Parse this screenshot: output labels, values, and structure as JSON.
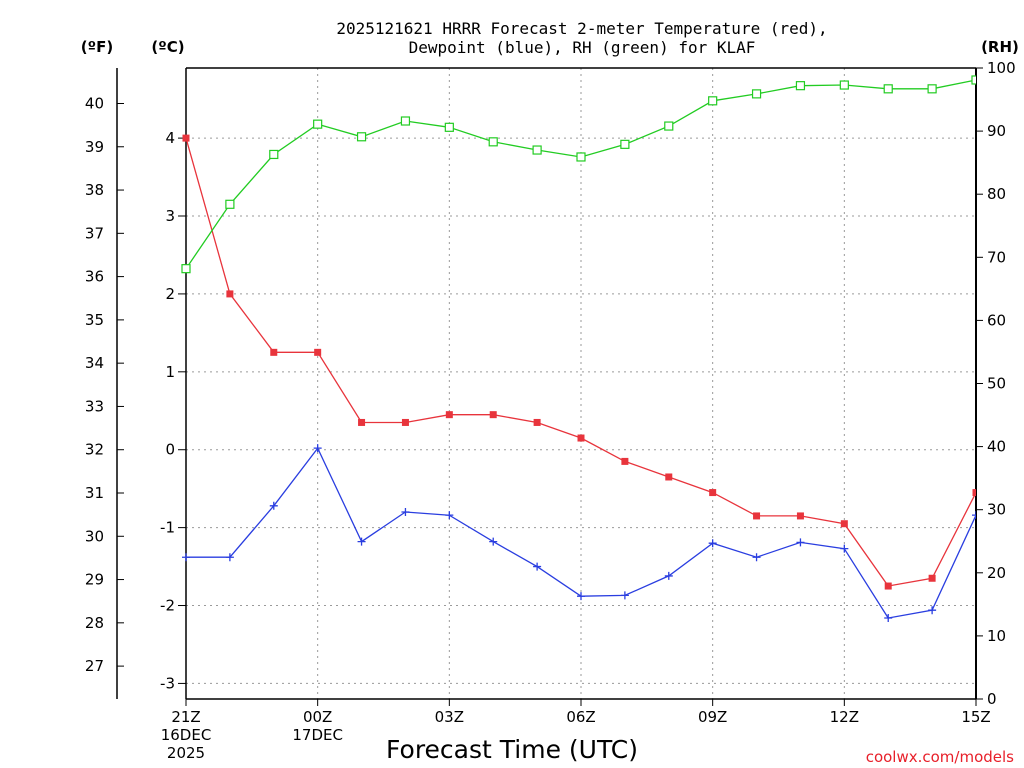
{
  "chart_data": {
    "type": "line",
    "title_line1": "2025121621 HRRR Forecast 2-meter Temperature (red),",
    "title_line2": "Dewpoint (blue), RH (green) for KLAF",
    "xlabel": "Forecast Time (UTC)",
    "credit": "coolwx.com/models",
    "left_outer_unit": "(ºF)",
    "left_inner_unit": "(ºC)",
    "right_unit": "(RH)",
    "x_ticks": [
      {
        "hour": 0,
        "label": "21Z",
        "sub1": "16DEC",
        "sub2": "2025"
      },
      {
        "hour": 3,
        "label": "00Z",
        "sub1": "17DEC",
        "sub2": ""
      },
      {
        "hour": 6,
        "label": "03Z",
        "sub1": "",
        "sub2": ""
      },
      {
        "hour": 9,
        "label": "06Z",
        "sub1": "",
        "sub2": ""
      },
      {
        "hour": 12,
        "label": "09Z",
        "sub1": "",
        "sub2": ""
      },
      {
        "hour": 15,
        "label": "12Z",
        "sub1": "",
        "sub2": ""
      },
      {
        "hour": 18,
        "label": "15Z",
        "sub1": "",
        "sub2": ""
      }
    ],
    "x_range": [
      0,
      18
    ],
    "celsius_range": [
      -3.2,
      4.9
    ],
    "celsius_ticks": [
      -3,
      -2,
      -1,
      0,
      1,
      2,
      3,
      4
    ],
    "fahrenheit_ticks": [
      27,
      28,
      29,
      30,
      31,
      32,
      33,
      34,
      35,
      36,
      37,
      38,
      39,
      40
    ],
    "rh_range": [
      0,
      100
    ],
    "rh_ticks": [
      0,
      10,
      20,
      30,
      40,
      50,
      60,
      70,
      80,
      90,
      100
    ],
    "series": [
      {
        "name": "Temperature",
        "axis": "celsius",
        "color": "#e8343c",
        "marker": "filled-square",
        "values": [
          4.0,
          2.0,
          1.25,
          1.25,
          0.35,
          0.35,
          0.45,
          0.45,
          0.35,
          0.15,
          -0.15,
          -0.35,
          -0.55,
          -0.85,
          -0.85,
          -0.95,
          -1.75,
          -1.65,
          -0.55
        ]
      },
      {
        "name": "Dewpoint",
        "axis": "celsius",
        "color": "#2a3ee0",
        "marker": "plus",
        "values": [
          -1.38,
          -1.38,
          -0.72,
          0.02,
          -1.18,
          -0.8,
          -0.84,
          -1.18,
          -1.5,
          -1.88,
          -1.87,
          -1.62,
          -1.2,
          -1.38,
          -1.19,
          -1.27,
          -2.16,
          -2.06,
          -0.84
        ]
      },
      {
        "name": "RH",
        "axis": "rh",
        "color": "#22cc22",
        "marker": "open-square",
        "values": [
          68.2,
          78.4,
          86.3,
          91.1,
          89.1,
          91.6,
          90.6,
          88.3,
          87.0,
          85.9,
          87.9,
          90.8,
          94.8,
          95.9,
          97.2,
          97.3,
          96.7,
          96.7,
          98.1
        ]
      }
    ]
  }
}
